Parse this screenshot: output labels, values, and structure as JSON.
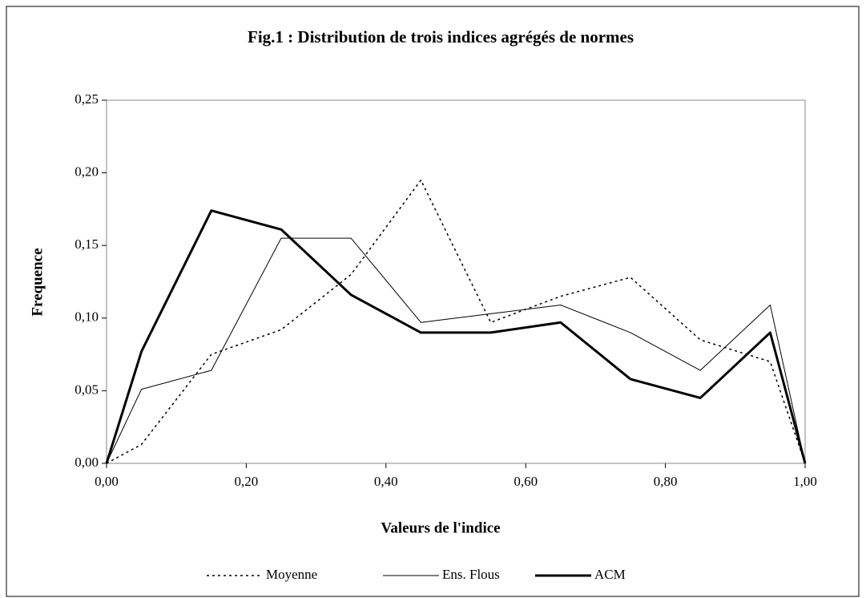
{
  "chart_data": {
    "type": "line",
    "title": "Fig.1 : Distribution de trois indices agrégés de normes",
    "x_label": "Valeurs de l'indice",
    "y_label": "Frequence",
    "x": [
      0,
      0.05,
      0.15,
      0.25,
      0.35,
      0.45,
      0.55,
      0.65,
      0.75,
      0.85,
      0.95,
      1.0
    ],
    "series": [
      {
        "name": "Moyenne",
        "color": "#000000",
        "style": "dotted",
        "width": 1.5,
        "values": [
          0,
          0.013,
          0.075,
          0.092,
          0.13,
          0.195,
          0.097,
          0.115,
          0.128,
          0.085,
          0.07,
          0
        ]
      },
      {
        "name": "Ens. Flous",
        "color": "#000000",
        "style": "solid",
        "width": 1,
        "values": [
          0,
          0.051,
          0.064,
          0.155,
          0.155,
          0.097,
          0.103,
          0.109,
          0.09,
          0.064,
          0.109,
          0
        ]
      },
      {
        "name": "ACM",
        "color": "#000000",
        "style": "solid",
        "width": 3,
        "values": [
          0,
          0.077,
          0.174,
          0.161,
          0.116,
          0.09,
          0.09,
          0.097,
          0.058,
          0.045,
          0.09,
          0
        ]
      }
    ],
    "xlim": [
      0,
      1
    ],
    "xticks": [
      {
        "value": 0,
        "label": "0,00"
      },
      {
        "value": 0.2,
        "label": "0,20"
      },
      {
        "value": 0.4,
        "label": "0,40"
      },
      {
        "value": 0.6,
        "label": "0,60"
      },
      {
        "value": 0.8,
        "label": "0,80"
      },
      {
        "value": 1,
        "label": "1,00"
      }
    ],
    "ylim": [
      0,
      0.25
    ],
    "yticks": [
      {
        "value": 0,
        "label": "0,00"
      },
      {
        "value": 0.05,
        "label": "0,05"
      },
      {
        "value": 0.1,
        "label": "0,10"
      },
      {
        "value": 0.15,
        "label": "0,15"
      },
      {
        "value": 0.2,
        "label": "0,20"
      },
      {
        "value": 0.25,
        "label": "0,25"
      }
    ],
    "grid": false,
    "legend": "bottom"
  }
}
